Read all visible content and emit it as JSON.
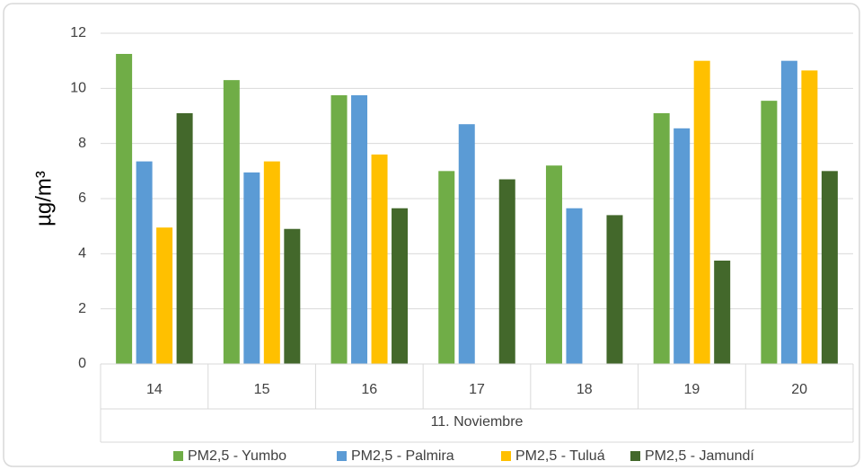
{
  "chart_data": {
    "type": "bar",
    "y_label": "µg/m³",
    "group_label": "11. Noviembre",
    "categories": [
      "14",
      "15",
      "16",
      "17",
      "18",
      "19",
      "20"
    ],
    "series": [
      {
        "name": "PM2,5 - Yumbo",
        "color": "#70ad47",
        "values": [
          11.25,
          10.3,
          9.75,
          7.0,
          7.2,
          9.1,
          9.55
        ]
      },
      {
        "name": "PM2,5 - Palmira",
        "color": "#5b9bd5",
        "values": [
          7.35,
          6.95,
          9.75,
          8.7,
          5.65,
          8.55,
          11.0
        ]
      },
      {
        "name": "PM2,5 - Tuluá",
        "color": "#ffc000",
        "values": [
          4.95,
          7.35,
          7.6,
          null,
          null,
          11.0,
          10.65
        ]
      },
      {
        "name": "PM2,5 - Jamundí",
        "color": "#43682b",
        "values": [
          9.1,
          4.9,
          5.65,
          6.7,
          5.4,
          3.75,
          7.0
        ]
      }
    ],
    "ylim": [
      0,
      12
    ],
    "yticks": [
      0,
      2,
      4,
      6,
      8,
      10,
      12
    ],
    "grid": true,
    "legend": "bottom"
  }
}
